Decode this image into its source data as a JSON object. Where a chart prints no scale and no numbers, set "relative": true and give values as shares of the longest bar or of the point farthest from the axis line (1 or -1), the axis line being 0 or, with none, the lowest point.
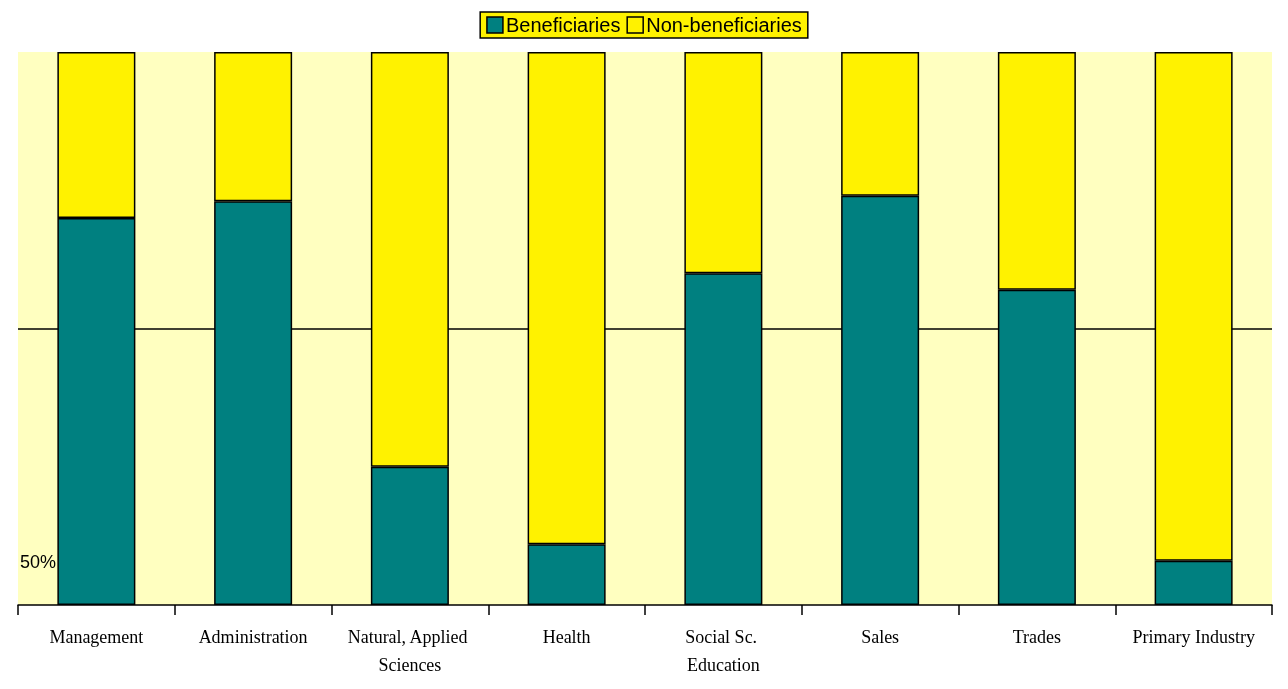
{
  "chart_data": {
    "type": "bar",
    "stacked": true,
    "relative": true,
    "categories": [
      "Management",
      "Administration",
      "Natural, Applied Sciences",
      "Health",
      "Social Sc. Education",
      "Sales",
      "Trades",
      "Primary Industry"
    ],
    "series": [
      {
        "name": "Beneficiaries",
        "color": "#008080",
        "values": [
          0.7,
          0.73,
          0.25,
          0.11,
          0.6,
          0.74,
          0.57,
          0.08
        ]
      },
      {
        "name": "Non-beneficiaries",
        "color": "#fff200",
        "values": [
          0.3,
          0.27,
          0.75,
          0.89,
          0.4,
          0.26,
          0.43,
          0.92
        ]
      }
    ],
    "ref_lines": [
      {
        "axis": "y",
        "value": 0.5,
        "color": "#000000"
      }
    ],
    "legend": "top",
    "annotations": [
      "50%"
    ]
  }
}
